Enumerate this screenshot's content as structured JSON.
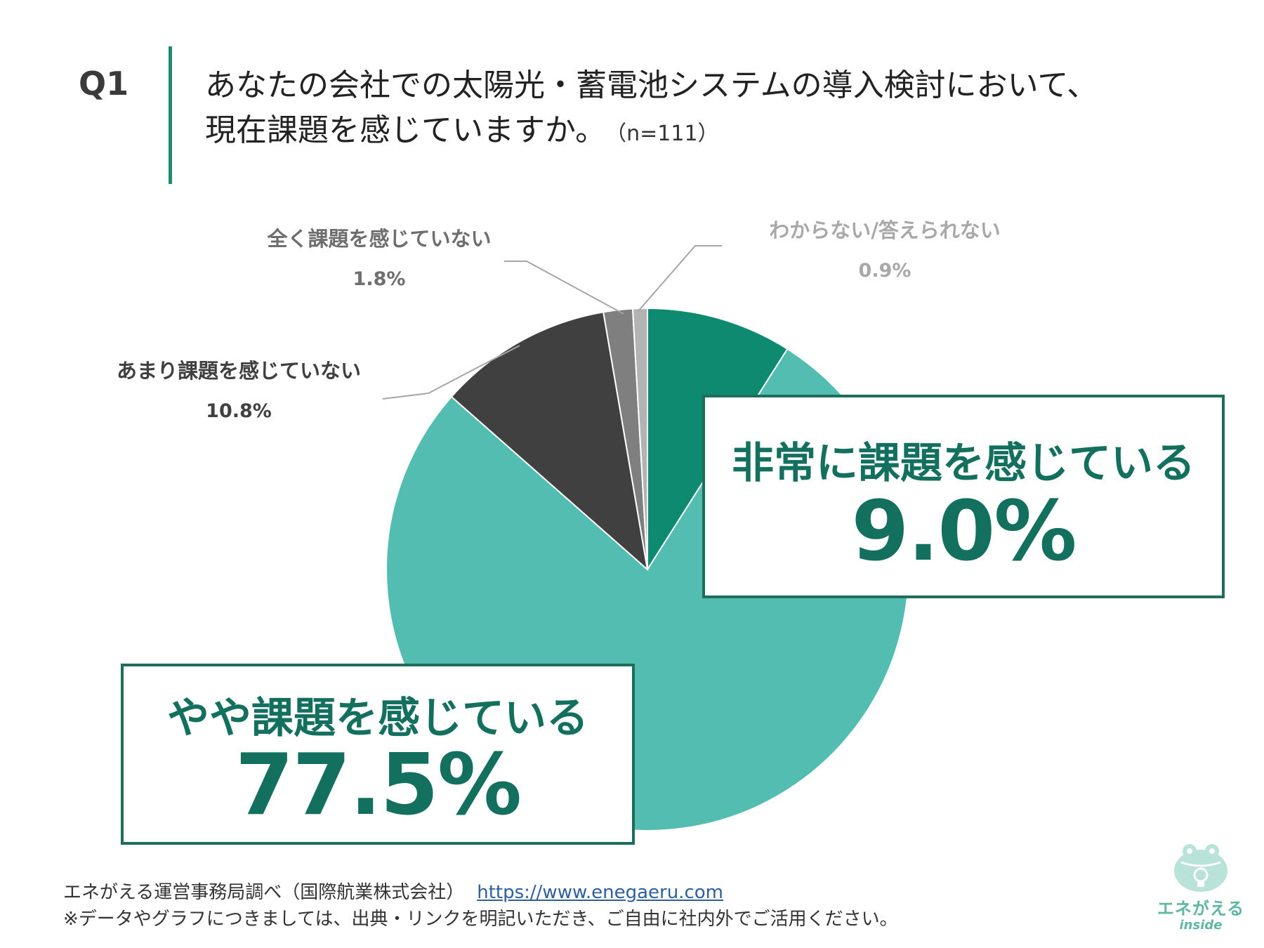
{
  "header": {
    "q_number": "Q1",
    "question_line1": "あなたの会社での太陽光・蓄電池システムの導入検討において、",
    "question_line2": "現在課題を感じていますか。",
    "sample_size": "（n=111）"
  },
  "chart_data": {
    "type": "pie",
    "categories": [
      "非常に課題を感じている",
      "やや課題を感じている",
      "あまり課題を感じていない",
      "全く課題を感じていない",
      "わからない/答えられない"
    ],
    "values": [
      9.0,
      77.5,
      10.8,
      1.8,
      0.9
    ],
    "value_labels": [
      "9.0%",
      "77.5%",
      "10.8%",
      "1.8%",
      "0.9%"
    ],
    "colors": [
      "#0d8a6f",
      "#52bdb0",
      "#404040",
      "#7f7f7f",
      "#b3b3b3"
    ],
    "start_angle_deg": 0,
    "direction": "clockwise"
  },
  "labels": {
    "very": {
      "name": "非常に課題を感じている",
      "pct": "9.0%"
    },
    "some": {
      "name": "やや課題を感じている",
      "pct": "77.5%"
    },
    "not_much": {
      "name": "あまり課題を感じていない",
      "pct": "10.8%"
    },
    "not_at_all": {
      "name": "全く課題を感じていない",
      "pct": "1.8%"
    },
    "unknown": {
      "name": "わからない/答えられない",
      "pct": "0.9%"
    }
  },
  "footer": {
    "source": "エネがえる運営事務局調べ（国際航業株式会社）",
    "url": "https://www.enegaeru.com",
    "note": "※データやグラフにつきましては、出典・リンクを明記いただき、ご自由に社内外でご活用ください。"
  },
  "logo": {
    "name": "エネがえる",
    "sub": "inside",
    "icon": "frog-lightbulb-icon"
  }
}
